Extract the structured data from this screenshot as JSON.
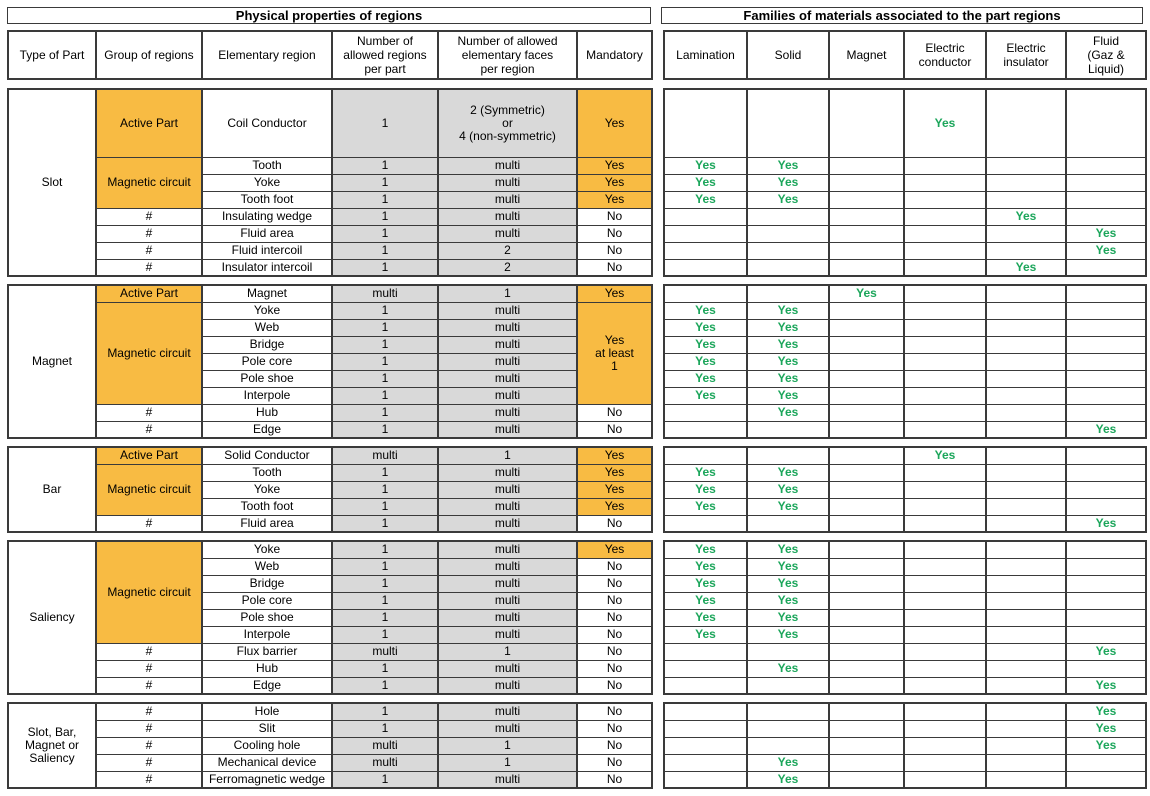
{
  "colors": {
    "highlight_orange": "#f8bb43",
    "yes_green": "#1ca65b",
    "value_grey": "#d9d9d9",
    "border_grey": "#3a3a3a"
  },
  "left_table": {
    "title": "Physical properties of regions",
    "columns": [
      "Type of Part",
      "Group of regions",
      "Elementary region",
      "Number of\nallowed regions\nper part",
      "Number of allowed\nelementary faces\nper region",
      "Mandatory"
    ]
  },
  "right_table": {
    "title": "Families of materials associated to the part regions",
    "columns": [
      "Lamination",
      "Solid",
      "Magnet",
      "Electric\nconductor",
      "Electric\ninsulator",
      "Fluid\n(Gaz &\nLiquid)"
    ],
    "column_keys": [
      "lamination",
      "solid",
      "magnet",
      "electric-conductor",
      "electric-insulator",
      "fluid"
    ]
  },
  "sections": [
    {
      "part": "Slot",
      "groups": [
        {
          "label": "Active Part",
          "span": 1,
          "orange": true
        },
        {
          "label": "Magnetic circuit",
          "span": 3,
          "orange": true
        },
        {
          "label": "#",
          "span": 1
        },
        {
          "label": "#",
          "span": 1
        },
        {
          "label": "#",
          "span": 1
        },
        {
          "label": "#",
          "span": 1
        }
      ],
      "mandatory_cells": [
        {
          "label": "Yes",
          "span": 1,
          "orange": true
        },
        {
          "label": "Yes",
          "span": 1,
          "orange": true
        },
        {
          "label": "Yes",
          "span": 1,
          "orange": true
        },
        {
          "label": "Yes",
          "span": 1,
          "orange": true
        },
        {
          "label": "No",
          "span": 1
        },
        {
          "label": "No",
          "span": 1
        },
        {
          "label": "No",
          "span": 1
        },
        {
          "label": "No",
          "span": 1
        }
      ],
      "rows": [
        {
          "region": "Coil Conductor",
          "per_part": "1",
          "faces": "2 (Symmetric)\nor\n4 (non-symmetric)",
          "h": 68,
          "materials": [
            "",
            "",
            "",
            "Yes",
            "",
            ""
          ]
        },
        {
          "region": "Tooth",
          "per_part": "1",
          "faces": "multi",
          "materials": [
            "Yes",
            "Yes",
            "",
            "",
            "",
            ""
          ]
        },
        {
          "region": "Yoke",
          "per_part": "1",
          "faces": "multi",
          "materials": [
            "Yes",
            "Yes",
            "",
            "",
            "",
            ""
          ]
        },
        {
          "region": "Tooth foot",
          "per_part": "1",
          "faces": "multi",
          "materials": [
            "Yes",
            "Yes",
            "",
            "",
            "",
            ""
          ]
        },
        {
          "region": "Insulating wedge",
          "per_part": "1",
          "faces": "multi",
          "materials": [
            "",
            "",
            "",
            "",
            "Yes",
            ""
          ]
        },
        {
          "region": "Fluid area",
          "per_part": "1",
          "faces": "multi",
          "materials": [
            "",
            "",
            "",
            "",
            "",
            "Yes"
          ]
        },
        {
          "region": "Fluid intercoil",
          "per_part": "1",
          "faces": "2",
          "materials": [
            "",
            "",
            "",
            "",
            "",
            "Yes"
          ]
        },
        {
          "region": "Insulator intercoil",
          "per_part": "1",
          "faces": "2",
          "materials": [
            "",
            "",
            "",
            "",
            "Yes",
            ""
          ]
        }
      ]
    },
    {
      "part": "Magnet",
      "groups": [
        {
          "label": "Active Part",
          "span": 1,
          "orange": true
        },
        {
          "label": "Magnetic circuit",
          "span": 6,
          "orange": true
        },
        {
          "label": "#",
          "span": 1
        },
        {
          "label": "#",
          "span": 1
        }
      ],
      "mandatory_cells": [
        {
          "label": "Yes",
          "span": 1,
          "orange": true
        },
        {
          "label": "Yes\nat least\n1",
          "span": 6,
          "orange": true
        },
        {
          "label": "No",
          "span": 1
        },
        {
          "label": "No",
          "span": 1
        }
      ],
      "rows": [
        {
          "region": "Magnet",
          "per_part": "multi",
          "faces": "1",
          "materials": [
            "",
            "",
            "Yes",
            "",
            "",
            ""
          ]
        },
        {
          "region": "Yoke",
          "per_part": "1",
          "faces": "multi",
          "materials": [
            "Yes",
            "Yes",
            "",
            "",
            "",
            ""
          ]
        },
        {
          "region": "Web",
          "per_part": "1",
          "faces": "multi",
          "materials": [
            "Yes",
            "Yes",
            "",
            "",
            "",
            ""
          ]
        },
        {
          "region": "Bridge",
          "per_part": "1",
          "faces": "multi",
          "materials": [
            "Yes",
            "Yes",
            "",
            "",
            "",
            ""
          ]
        },
        {
          "region": "Pole core",
          "per_part": "1",
          "faces": "multi",
          "materials": [
            "Yes",
            "Yes",
            "",
            "",
            "",
            ""
          ]
        },
        {
          "region": "Pole shoe",
          "per_part": "1",
          "faces": "multi",
          "materials": [
            "Yes",
            "Yes",
            "",
            "",
            "",
            ""
          ]
        },
        {
          "region": "Interpole",
          "per_part": "1",
          "faces": "multi",
          "materials": [
            "Yes",
            "Yes",
            "",
            "",
            "",
            ""
          ]
        },
        {
          "region": "Hub",
          "per_part": "1",
          "faces": "multi",
          "materials": [
            "",
            "Yes",
            "",
            "",
            "",
            ""
          ]
        },
        {
          "region": "Edge",
          "per_part": "1",
          "faces": "multi",
          "materials": [
            "",
            "",
            "",
            "",
            "",
            "Yes"
          ]
        }
      ]
    },
    {
      "part": "Bar",
      "groups": [
        {
          "label": "Active Part",
          "span": 1,
          "orange": true
        },
        {
          "label": "Magnetic circuit",
          "span": 3,
          "orange": true
        },
        {
          "label": "#",
          "span": 1
        }
      ],
      "mandatory_cells": [
        {
          "label": "Yes",
          "span": 1,
          "orange": true
        },
        {
          "label": "Yes",
          "span": 1,
          "orange": true
        },
        {
          "label": "Yes",
          "span": 1,
          "orange": true
        },
        {
          "label": "Yes",
          "span": 1,
          "orange": true
        },
        {
          "label": "No",
          "span": 1
        }
      ],
      "rows": [
        {
          "region": "Solid Conductor",
          "per_part": "multi",
          "faces": "1",
          "materials": [
            "",
            "",
            "",
            "Yes",
            "",
            ""
          ]
        },
        {
          "region": "Tooth",
          "per_part": "1",
          "faces": "multi",
          "materials": [
            "Yes",
            "Yes",
            "",
            "",
            "",
            ""
          ]
        },
        {
          "region": "Yoke",
          "per_part": "1",
          "faces": "multi",
          "materials": [
            "Yes",
            "Yes",
            "",
            "",
            "",
            ""
          ]
        },
        {
          "region": "Tooth foot",
          "per_part": "1",
          "faces": "multi",
          "materials": [
            "Yes",
            "Yes",
            "",
            "",
            "",
            ""
          ]
        },
        {
          "region": "Fluid area",
          "per_part": "1",
          "faces": "multi",
          "materials": [
            "",
            "",
            "",
            "",
            "",
            "Yes"
          ]
        }
      ]
    },
    {
      "part": "Saliency",
      "groups": [
        {
          "label": "Magnetic circuit",
          "span": 6,
          "orange": true
        },
        {
          "label": "#",
          "span": 1
        },
        {
          "label": "#",
          "span": 1
        },
        {
          "label": "#",
          "span": 1
        }
      ],
      "mandatory_cells": [
        {
          "label": "Yes",
          "span": 1,
          "orange": true
        },
        {
          "label": "No",
          "span": 1
        },
        {
          "label": "No",
          "span": 1
        },
        {
          "label": "No",
          "span": 1
        },
        {
          "label": "No",
          "span": 1
        },
        {
          "label": "No",
          "span": 1
        },
        {
          "label": "No",
          "span": 1
        },
        {
          "label": "No",
          "span": 1
        },
        {
          "label": "No",
          "span": 1
        }
      ],
      "rows": [
        {
          "region": "Yoke",
          "per_part": "1",
          "faces": "multi",
          "materials": [
            "Yes",
            "Yes",
            "",
            "",
            "",
            ""
          ]
        },
        {
          "region": "Web",
          "per_part": "1",
          "faces": "multi",
          "materials": [
            "Yes",
            "Yes",
            "",
            "",
            "",
            ""
          ]
        },
        {
          "region": "Bridge",
          "per_part": "1",
          "faces": "multi",
          "materials": [
            "Yes",
            "Yes",
            "",
            "",
            "",
            ""
          ]
        },
        {
          "region": "Pole core",
          "per_part": "1",
          "faces": "multi",
          "materials": [
            "Yes",
            "Yes",
            "",
            "",
            "",
            ""
          ]
        },
        {
          "region": "Pole shoe",
          "per_part": "1",
          "faces": "multi",
          "materials": [
            "Yes",
            "Yes",
            "",
            "",
            "",
            ""
          ]
        },
        {
          "region": "Interpole",
          "per_part": "1",
          "faces": "multi",
          "materials": [
            "Yes",
            "Yes",
            "",
            "",
            "",
            ""
          ]
        },
        {
          "region": "Flux barrier",
          "per_part": "multi",
          "faces": "1",
          "materials": [
            "",
            "",
            "",
            "",
            "",
            "Yes"
          ]
        },
        {
          "region": "Hub",
          "per_part": "1",
          "faces": "multi",
          "materials": [
            "",
            "Yes",
            "",
            "",
            "",
            ""
          ]
        },
        {
          "region": "Edge",
          "per_part": "1",
          "faces": "multi",
          "materials": [
            "",
            "",
            "",
            "",
            "",
            "Yes"
          ]
        }
      ]
    },
    {
      "part": "Slot, Bar, Magnet or Saliency",
      "groups": [
        {
          "label": "#",
          "span": 1
        },
        {
          "label": "#",
          "span": 1
        },
        {
          "label": "#",
          "span": 1
        },
        {
          "label": "#",
          "span": 1
        },
        {
          "label": "#",
          "span": 1
        }
      ],
      "mandatory_cells": [
        {
          "label": "No",
          "span": 1
        },
        {
          "label": "No",
          "span": 1
        },
        {
          "label": "No",
          "span": 1
        },
        {
          "label": "No",
          "span": 1
        },
        {
          "label": "No",
          "span": 1
        }
      ],
      "rows": [
        {
          "region": "Hole",
          "per_part": "1",
          "faces": "multi",
          "materials": [
            "",
            "",
            "",
            "",
            "",
            "Yes"
          ]
        },
        {
          "region": "Slit",
          "per_part": "1",
          "faces": "multi",
          "materials": [
            "",
            "",
            "",
            "",
            "",
            "Yes"
          ]
        },
        {
          "region": "Cooling hole",
          "per_part": "multi",
          "faces": "1",
          "materials": [
            "",
            "",
            "",
            "",
            "",
            "Yes"
          ]
        },
        {
          "region": "Mechanical device",
          "per_part": "multi",
          "faces": "1",
          "materials": [
            "",
            "Yes",
            "",
            "",
            "",
            ""
          ]
        },
        {
          "region": "Ferromagnetic wedge",
          "per_part": "1",
          "faces": "multi",
          "materials": [
            "",
            "Yes",
            "",
            "",
            "",
            ""
          ]
        }
      ]
    }
  ]
}
